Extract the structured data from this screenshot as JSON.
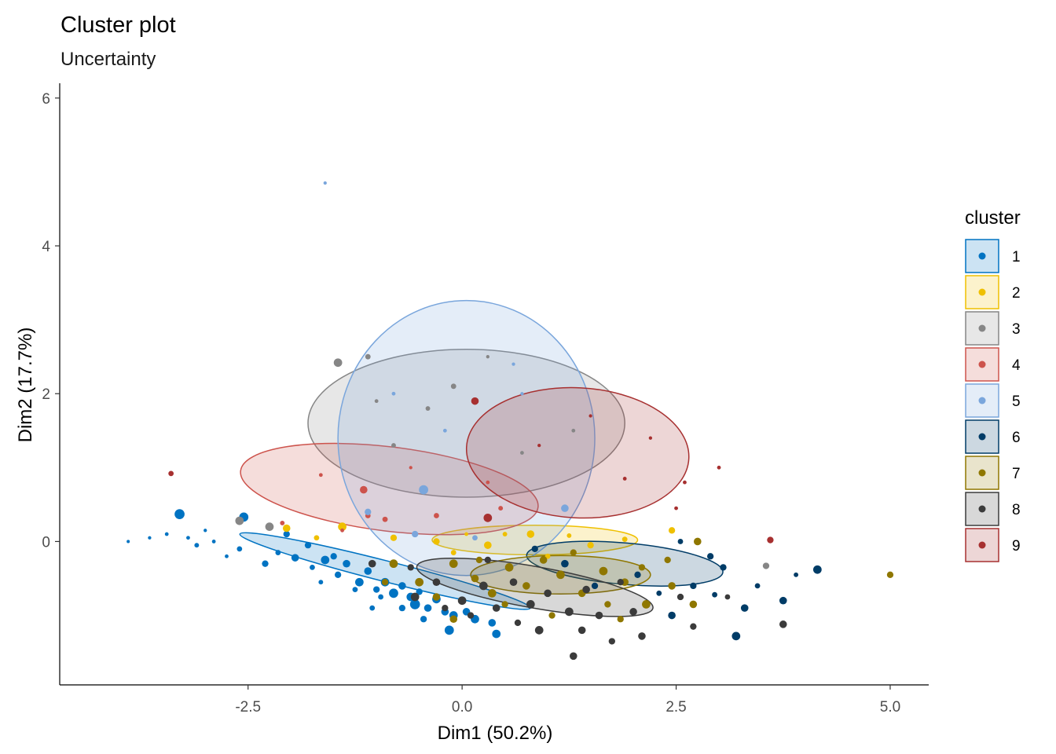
{
  "chart_data": {
    "type": "scatter",
    "title": "Cluster plot",
    "subtitle": "Uncertainty",
    "xlabel": "Dim1 (50.2%)",
    "ylabel": "Dim2 (17.7%)",
    "xlim": [
      -4.7,
      5.45
    ],
    "ylim": [
      -1.94,
      6.2
    ],
    "xticks": [
      {
        "value": -2.5,
        "label": "-2.5"
      },
      {
        "value": 0,
        "label": "0.0"
      },
      {
        "value": 2.5,
        "label": "2.5"
      },
      {
        "value": 5,
        "label": "5.0"
      }
    ],
    "yticks": [
      {
        "value": 0,
        "label": "0"
      },
      {
        "value": 2,
        "label": "2"
      },
      {
        "value": 4,
        "label": "4"
      },
      {
        "value": 6,
        "label": "6"
      }
    ],
    "grid": false,
    "legend": {
      "title": "cluster",
      "position": "right"
    },
    "clusters": [
      {
        "name": "1",
        "color": "#0073C2",
        "ellipse": {
          "cx": -0.9,
          "cy": -0.4,
          "rx": 1.75,
          "ry": 0.14,
          "angle_deg": -14.3
        },
        "points": [
          [
            -3.3,
            0.37,
            0.07
          ],
          [
            -2.55,
            0.33,
            0.06
          ],
          [
            -2.05,
            0.1,
            0.03
          ],
          [
            -1.95,
            -0.22,
            0.04
          ],
          [
            -1.8,
            -0.05,
            0.03
          ],
          [
            -1.6,
            -0.25,
            0.05
          ],
          [
            -1.5,
            -0.2,
            0.03
          ],
          [
            -1.35,
            -0.3,
            0.04
          ],
          [
            -1.2,
            -0.55,
            0.05
          ],
          [
            -1.1,
            -0.4,
            0.04
          ],
          [
            -1.0,
            -0.65,
            0.03
          ],
          [
            -0.9,
            -0.55,
            0.05
          ],
          [
            -0.8,
            -0.7,
            0.06
          ],
          [
            -0.7,
            -0.6,
            0.04
          ],
          [
            -0.6,
            -0.75,
            0.05
          ],
          [
            -0.55,
            -0.85,
            0.07
          ],
          [
            -0.5,
            -0.68,
            0.03
          ],
          [
            -0.4,
            -0.9,
            0.04
          ],
          [
            -0.3,
            -0.78,
            0.05
          ],
          [
            -0.2,
            -0.95,
            0.04
          ],
          [
            -0.1,
            -1.0,
            0.05
          ],
          [
            -0.15,
            -1.2,
            0.06
          ],
          [
            0.05,
            -0.95,
            0.04
          ],
          [
            0.15,
            -1.05,
            0.05
          ],
          [
            0.35,
            -1.1,
            0.04
          ],
          [
            0.4,
            -1.25,
            0.05
          ],
          [
            -2.3,
            -0.3,
            0.03
          ],
          [
            -2.15,
            -0.15,
            0.02
          ],
          [
            -1.75,
            -0.35,
            0.02
          ],
          [
            -1.45,
            -0.45,
            0.03
          ],
          [
            -1.25,
            -0.65,
            0.02
          ],
          [
            -0.95,
            -0.75,
            0.02
          ],
          [
            -0.7,
            -0.9,
            0.03
          ],
          [
            -0.45,
            -1.05,
            0.03
          ],
          [
            -2.6,
            -0.1,
            0.02
          ],
          [
            -2.9,
            0.0,
            0.01
          ],
          [
            -3.1,
            -0.05,
            0.015
          ],
          [
            -3.2,
            0.05,
            0.01
          ],
          [
            -3.45,
            0.1,
            0.01
          ],
          [
            -3.65,
            0.05,
            0.008
          ],
          [
            -3.9,
            0.0,
            0.007
          ],
          [
            -3.0,
            0.15,
            0.008
          ],
          [
            -2.75,
            -0.2,
            0.01
          ],
          [
            -1.65,
            -0.55,
            0.015
          ],
          [
            -1.05,
            -0.9,
            0.02
          ]
        ]
      },
      {
        "name": "2",
        "color": "#EFC000",
        "ellipse": {
          "cx": 0.85,
          "cy": 0.02,
          "rx": 1.2,
          "ry": 0.2,
          "angle_deg": 0
        },
        "points": [
          [
            -2.05,
            0.18,
            0.04
          ],
          [
            -1.4,
            0.2,
            0.05
          ],
          [
            -0.8,
            0.05,
            0.03
          ],
          [
            -0.3,
            0.0,
            0.03
          ],
          [
            0.3,
            -0.05,
            0.04
          ],
          [
            0.8,
            0.1,
            0.04
          ],
          [
            1.5,
            -0.05,
            0.03
          ],
          [
            1.9,
            0.03,
            0.02
          ],
          [
            2.45,
            0.15,
            0.03
          ],
          [
            -0.1,
            -0.15,
            0.02
          ],
          [
            1.0,
            -0.2,
            0.02
          ],
          [
            -1.7,
            0.05,
            0.02
          ],
          [
            0.5,
            0.1,
            0.015
          ],
          [
            1.25,
            0.08,
            0.015
          ],
          [
            0.05,
            0.1,
            0.01
          ]
        ]
      },
      {
        "name": "3",
        "color": "#868686",
        "ellipse": {
          "cx": 0.05,
          "cy": 1.6,
          "rx": 1.85,
          "ry": 1.0,
          "angle_deg": 0
        },
        "points": [
          [
            -2.25,
            0.2,
            0.05
          ],
          [
            -2.6,
            0.28,
            0.05
          ],
          [
            -1.45,
            2.42,
            0.05
          ],
          [
            -1.1,
            2.5,
            0.02
          ],
          [
            -0.1,
            2.1,
            0.02
          ],
          [
            -0.4,
            1.8,
            0.015
          ],
          [
            0.7,
            1.2,
            0.01
          ],
          [
            -0.8,
            1.3,
            0.015
          ],
          [
            3.55,
            -0.33,
            0.03
          ],
          [
            0.3,
            2.5,
            0.008
          ],
          [
            -1.0,
            1.9,
            0.01
          ],
          [
            1.3,
            1.5,
            0.01
          ]
        ]
      },
      {
        "name": "4",
        "color": "#CD534C",
        "ellipse": {
          "cx": -0.85,
          "cy": 0.71,
          "rx": 1.75,
          "ry": 0.57,
          "angle_deg": -7
        },
        "points": [
          [
            -1.15,
            0.7,
            0.04
          ],
          [
            -1.1,
            0.35,
            0.02
          ],
          [
            -0.3,
            0.35,
            0.02
          ],
          [
            0.45,
            0.45,
            0.015
          ],
          [
            -1.65,
            0.9,
            0.01
          ],
          [
            -0.9,
            0.3,
            0.02
          ],
          [
            -2.1,
            0.25,
            0.015
          ],
          [
            0.3,
            0.8,
            0.01
          ],
          [
            -0.6,
            1.0,
            0.008
          ],
          [
            -1.4,
            0.15,
            0.01
          ]
        ]
      },
      {
        "name": "5",
        "color": "#7AA6DC",
        "ellipse": {
          "cx": 0.05,
          "cy": 1.4,
          "rx": 1.5,
          "ry": 1.86,
          "angle_deg": 0
        },
        "points": [
          [
            -0.45,
            0.7,
            0.06
          ],
          [
            1.2,
            0.45,
            0.04
          ],
          [
            -0.55,
            0.1,
            0.03
          ],
          [
            -1.1,
            0.4,
            0.03
          ],
          [
            0.15,
            0.05,
            0.02
          ],
          [
            -0.8,
            2.0,
            0.01
          ],
          [
            0.6,
            2.4,
            0.008
          ],
          [
            -1.6,
            4.85,
            0.008
          ],
          [
            0.7,
            2.0,
            0.008
          ],
          [
            -0.2,
            1.5,
            0.01
          ]
        ]
      },
      {
        "name": "6",
        "color": "#003C67",
        "ellipse": {
          "cx": 1.9,
          "cy": -0.3,
          "rx": 1.15,
          "ry": 0.28,
          "angle_deg": -5
        },
        "points": [
          [
            4.15,
            -0.38,
            0.05
          ],
          [
            3.75,
            -0.8,
            0.04
          ],
          [
            3.3,
            -0.9,
            0.04
          ],
          [
            2.45,
            -1.0,
            0.04
          ],
          [
            2.7,
            -0.6,
            0.03
          ],
          [
            2.9,
            -0.2,
            0.03
          ],
          [
            1.2,
            -0.3,
            0.04
          ],
          [
            3.2,
            -1.28,
            0.05
          ],
          [
            2.05,
            -0.45,
            0.03
          ],
          [
            0.85,
            -0.1,
            0.03
          ],
          [
            2.3,
            -0.7,
            0.02
          ],
          [
            2.55,
            0.0,
            0.02
          ],
          [
            3.05,
            -0.35,
            0.03
          ],
          [
            3.9,
            -0.45,
            0.015
          ],
          [
            3.45,
            -0.6,
            0.02
          ],
          [
            1.55,
            -0.6,
            0.03
          ],
          [
            0.55,
            -0.35,
            0.03
          ],
          [
            2.95,
            -0.72,
            0.02
          ]
        ]
      },
      {
        "name": "7",
        "color": "#8F7700",
        "ellipse": {
          "cx": 1.15,
          "cy": -0.45,
          "rx": 1.05,
          "ry": 0.26,
          "angle_deg": 0
        },
        "points": [
          [
            -0.8,
            -0.3,
            0.05
          ],
          [
            -0.5,
            -0.55,
            0.05
          ],
          [
            -0.3,
            -0.75,
            0.04
          ],
          [
            -0.1,
            -0.3,
            0.05
          ],
          [
            0.15,
            -0.5,
            0.04
          ],
          [
            0.35,
            -0.7,
            0.05
          ],
          [
            0.55,
            -0.35,
            0.05
          ],
          [
            0.75,
            -0.6,
            0.04
          ],
          [
            0.95,
            -0.25,
            0.04
          ],
          [
            1.15,
            -0.45,
            0.05
          ],
          [
            1.4,
            -0.7,
            0.04
          ],
          [
            1.65,
            -0.4,
            0.05
          ],
          [
            1.9,
            -0.55,
            0.04
          ],
          [
            2.15,
            -0.85,
            0.05
          ],
          [
            2.45,
            -0.6,
            0.04
          ],
          [
            2.7,
            -0.85,
            0.04
          ],
          [
            2.75,
            0.0,
            0.04
          ],
          [
            -0.9,
            -0.55,
            0.03
          ],
          [
            -0.1,
            -1.05,
            0.04
          ],
          [
            0.5,
            -0.85,
            0.03
          ],
          [
            1.05,
            -1.0,
            0.03
          ],
          [
            1.85,
            -1.05,
            0.03
          ],
          [
            2.4,
            -0.25,
            0.03
          ],
          [
            1.3,
            -0.15,
            0.03
          ],
          [
            0.2,
            -0.25,
            0.03
          ],
          [
            5.0,
            -0.45,
            0.03
          ],
          [
            2.1,
            -0.35,
            0.03
          ],
          [
            1.7,
            -0.85,
            0.03
          ]
        ]
      },
      {
        "name": "8",
        "color": "#3B3B3B",
        "ellipse": {
          "cx": 0.85,
          "cy": -0.62,
          "rx": 1.4,
          "ry": 0.28,
          "angle_deg": -10
        },
        "points": [
          [
            -1.05,
            -0.3,
            0.04
          ],
          [
            -0.55,
            -0.75,
            0.05
          ],
          [
            -0.3,
            -0.55,
            0.04
          ],
          [
            0.0,
            -0.8,
            0.05
          ],
          [
            0.25,
            -0.6,
            0.05
          ],
          [
            0.4,
            -0.9,
            0.04
          ],
          [
            0.6,
            -0.55,
            0.04
          ],
          [
            0.8,
            -0.85,
            0.05
          ],
          [
            1.0,
            -0.7,
            0.04
          ],
          [
            1.25,
            -0.95,
            0.05
          ],
          [
            1.45,
            -0.65,
            0.04
          ],
          [
            1.6,
            -1.0,
            0.04
          ],
          [
            0.9,
            -1.2,
            0.05
          ],
          [
            1.3,
            -1.55,
            0.04
          ],
          [
            2.1,
            -1.28,
            0.04
          ],
          [
            1.4,
            -1.2,
            0.04
          ],
          [
            2.0,
            -0.95,
            0.04
          ],
          [
            3.75,
            -1.12,
            0.04
          ],
          [
            2.7,
            -1.15,
            0.03
          ],
          [
            3.1,
            -0.75,
            0.02
          ],
          [
            -0.6,
            -0.35,
            0.03
          ],
          [
            0.1,
            -1.0,
            0.03
          ],
          [
            0.65,
            -1.1,
            0.03
          ],
          [
            1.75,
            -1.35,
            0.03
          ],
          [
            -0.2,
            -0.9,
            0.03
          ],
          [
            2.55,
            -0.75,
            0.03
          ],
          [
            1.85,
            -0.55,
            0.03
          ],
          [
            0.3,
            -0.25,
            0.03
          ]
        ]
      },
      {
        "name": "9",
        "color": "#A73030",
        "ellipse": {
          "cx": 1.35,
          "cy": 1.2,
          "rx": 1.3,
          "ry": 0.88,
          "angle_deg": -3
        },
        "points": [
          [
            0.3,
            0.32,
            0.05
          ],
          [
            0.15,
            1.9,
            0.04
          ],
          [
            3.6,
            0.02,
            0.03
          ],
          [
            -3.4,
            0.92,
            0.02
          ],
          [
            1.9,
            0.85,
            0.01
          ],
          [
            2.6,
            0.8,
            0.01
          ],
          [
            1.5,
            1.7,
            0.008
          ],
          [
            3.0,
            1.0,
            0.01
          ],
          [
            2.2,
            1.4,
            0.008
          ],
          [
            0.9,
            1.3,
            0.008
          ],
          [
            2.5,
            0.45,
            0.01
          ]
        ]
      }
    ]
  }
}
